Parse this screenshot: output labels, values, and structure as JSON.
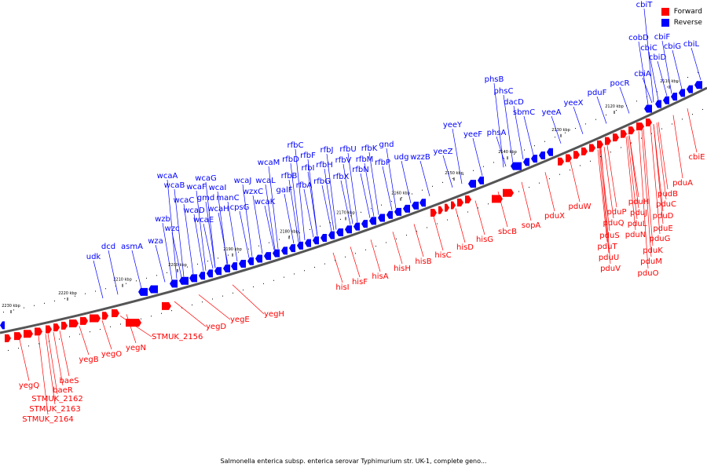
{
  "caption": "Salmonella enterica subsp. enterica serovar Typhimurium str. UK-1, complete geno...",
  "legend": {
    "forward": {
      "label": "Forward",
      "color": "#ff0000"
    },
    "reverse": {
      "label": "Reverse",
      "color": "#0000ff"
    }
  },
  "ticks": [
    "2110 kbp",
    "2120 kbp",
    "2130 kbp",
    "2140 kbp",
    "2150 kbp",
    "2160 kbp",
    "2170 kbp",
    "2180 kbp",
    "2190 kbp",
    "2200 kbp",
    "2210 kbp",
    "2220 kbp",
    "2230 kbp"
  ],
  "reverse_genes": [
    "cbiT",
    "cbiF",
    "cobD",
    "cbiC",
    "cbiG",
    "cbiL",
    "cbiD",
    "cbiA",
    "pocR",
    "pduF",
    "phsB",
    "phsC",
    "dacD",
    "sbmC",
    "yeeA",
    "yeeX",
    "phsA",
    "yeeY",
    "yeeF",
    "yeeZ",
    "wzzB",
    "udg",
    "gnd",
    "rfbC",
    "rfbD",
    "rfbF",
    "rfbJ",
    "rfbU",
    "rfbK",
    "rfbI",
    "rfbH",
    "rfbV",
    "rfbM",
    "rfbP",
    "rfbB",
    "rfbG",
    "rfbX",
    "rfbN",
    "wcaM",
    "wcaL",
    "galF",
    "rfbA",
    "wcaJ",
    "wzxC",
    "wcaK",
    "wcaG",
    "wcaI",
    "wcaF",
    "wcaA",
    "wcaB",
    "wcaC",
    "gmd",
    "manC",
    "wcaD",
    "wcaH",
    "cpsG",
    "wcaE",
    "wzb",
    "wzc",
    "wza",
    "dcd",
    "asmA",
    "udk"
  ],
  "forward_genes": [
    "cbiE",
    "pduA",
    "pudB",
    "pduC",
    "pduD",
    "pduE",
    "pduG",
    "pduK",
    "pduM",
    "pduO",
    "pduH",
    "pduJ",
    "pduL",
    "pduN",
    "pduP",
    "pduQ",
    "pduS",
    "pduT",
    "pduU",
    "pduV",
    "pduW",
    "pduX",
    "sopA",
    "sbcB",
    "hisG",
    "hisD",
    "hisC",
    "hisB",
    "hisH",
    "hisA",
    "hisF",
    "hisI",
    "yegH",
    "yegE",
    "yegD",
    "STMUK_2156",
    "yegN",
    "yegO",
    "yegB",
    "baeS",
    "baeR",
    "yegQ",
    "STMUK_2162",
    "STMUK_2163",
    "STMUK_2164"
  ]
}
